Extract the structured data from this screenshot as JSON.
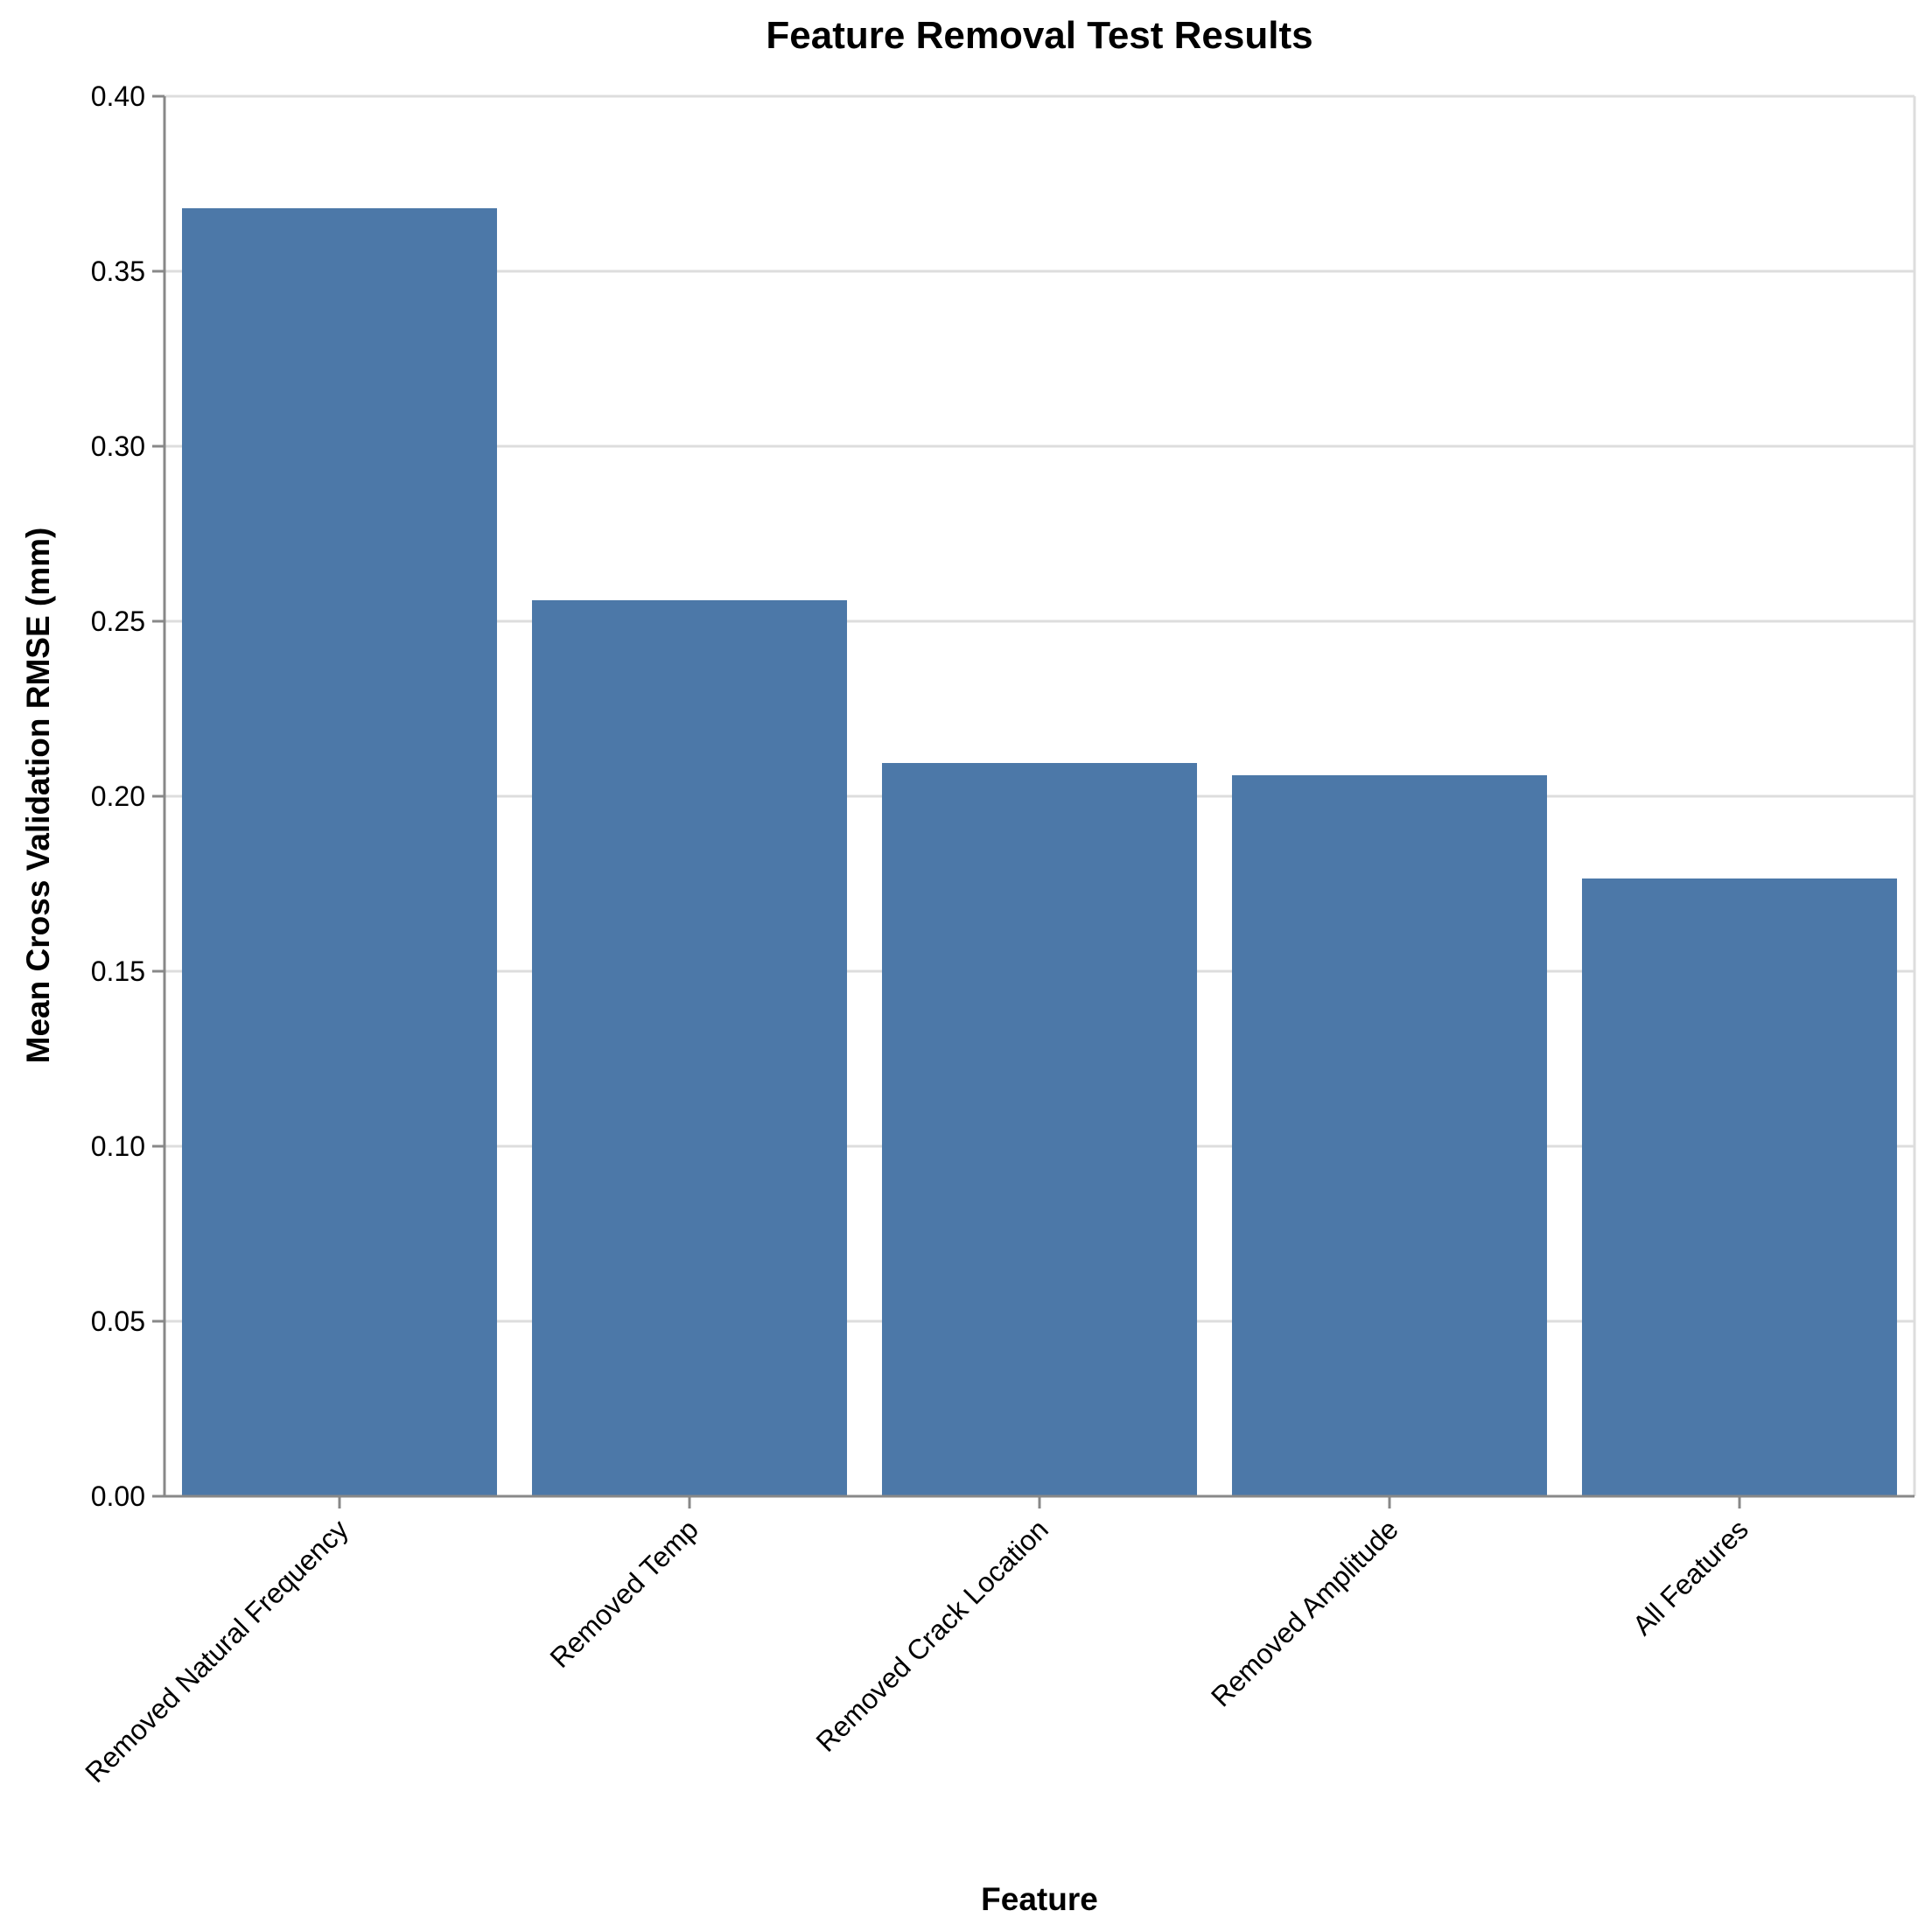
{
  "chart_data": {
    "type": "bar",
    "title": "Feature Removal Test Results",
    "xlabel": "Feature",
    "ylabel": "Mean Cross Validation RMSE (mm)",
    "categories": [
      "Removed Natural Frequency",
      "Removed Temp",
      "Removed Crack Location",
      "Removed Amplitude",
      "All Features"
    ],
    "values": [
      0.368,
      0.256,
      0.2095,
      0.206,
      0.1765
    ],
    "ylim": [
      0,
      0.4
    ],
    "yticks": [
      "0.00",
      "0.05",
      "0.10",
      "0.15",
      "0.20",
      "0.25",
      "0.30",
      "0.35",
      "0.40"
    ],
    "grid": true,
    "bar_color": "#4c78a8"
  }
}
